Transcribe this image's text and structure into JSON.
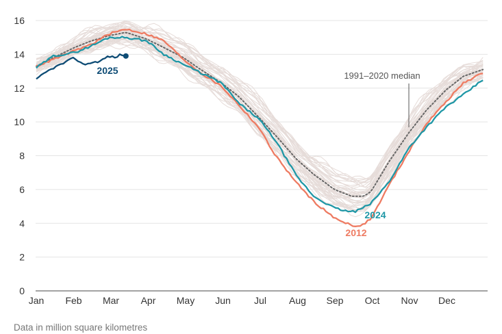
{
  "chart_data": {
    "type": "line",
    "title": "",
    "xlabel": "",
    "ylabel": "",
    "note": "Data in million square kilometres",
    "x_ticks": [
      "Jan",
      "Feb",
      "Mar",
      "Apr",
      "May",
      "Jun",
      "Jul",
      "Aug",
      "Sep",
      "Oct",
      "Nov",
      "Dec"
    ],
    "y_ticks": [
      0,
      2,
      4,
      6,
      8,
      10,
      12,
      14,
      16
    ],
    "ylim": [
      0,
      16
    ],
    "grid": true,
    "series": [
      {
        "name": "1991–2020 median",
        "color": "#666666",
        "style": "dotted",
        "points": [
          [
            1,
            13.3
          ],
          [
            15,
            13.8
          ],
          [
            32,
            14.4
          ],
          [
            46,
            14.8
          ],
          [
            60,
            15.1
          ],
          [
            74,
            15.3
          ],
          [
            91,
            14.9
          ],
          [
            105,
            14.4
          ],
          [
            121,
            13.8
          ],
          [
            135,
            13.1
          ],
          [
            152,
            12.3
          ],
          [
            166,
            11.5
          ],
          [
            182,
            10.3
          ],
          [
            196,
            9.2
          ],
          [
            213,
            7.8
          ],
          [
            227,
            6.9
          ],
          [
            244,
            6.0
          ],
          [
            258,
            5.6
          ],
          [
            268,
            5.6
          ],
          [
            274,
            5.9
          ],
          [
            288,
            7.6
          ],
          [
            305,
            9.4
          ],
          [
            319,
            10.7
          ],
          [
            335,
            11.9
          ],
          [
            349,
            12.7
          ],
          [
            365,
            13.1
          ]
        ]
      },
      {
        "name": "2012",
        "color": "#ee7b62",
        "style": "solid",
        "points": [
          [
            1,
            13.3
          ],
          [
            15,
            13.7
          ],
          [
            32,
            14.2
          ],
          [
            46,
            14.6
          ],
          [
            60,
            15.2
          ],
          [
            74,
            15.5
          ],
          [
            91,
            15.2
          ],
          [
            105,
            14.8
          ],
          [
            121,
            13.7
          ],
          [
            135,
            12.9
          ],
          [
            152,
            12.1
          ],
          [
            166,
            11.0
          ],
          [
            182,
            9.7
          ],
          [
            196,
            8.0
          ],
          [
            213,
            6.4
          ],
          [
            227,
            5.3
          ],
          [
            244,
            4.3
          ],
          [
            258,
            3.9
          ],
          [
            265,
            3.8
          ],
          [
            274,
            4.3
          ],
          [
            288,
            6.2
          ],
          [
            305,
            8.3
          ],
          [
            319,
            9.9
          ],
          [
            335,
            11.2
          ],
          [
            349,
            12.3
          ],
          [
            365,
            12.9
          ]
        ]
      },
      {
        "name": "2024",
        "color": "#1f97a6",
        "style": "solid",
        "points": [
          [
            1,
            13.2
          ],
          [
            15,
            13.9
          ],
          [
            32,
            14.1
          ],
          [
            46,
            14.5
          ],
          [
            60,
            15.0
          ],
          [
            74,
            15.0
          ],
          [
            91,
            14.8
          ],
          [
            105,
            14.0
          ],
          [
            121,
            13.4
          ],
          [
            135,
            12.9
          ],
          [
            152,
            12.3
          ],
          [
            166,
            11.1
          ],
          [
            182,
            10.2
          ],
          [
            196,
            8.9
          ],
          [
            213,
            6.8
          ],
          [
            227,
            5.6
          ],
          [
            244,
            4.9
          ],
          [
            255,
            4.7
          ],
          [
            261,
            4.7
          ],
          [
            267,
            4.9
          ],
          [
            274,
            5.2
          ],
          [
            288,
            6.4
          ],
          [
            305,
            8.5
          ],
          [
            319,
            9.7
          ],
          [
            335,
            10.9
          ],
          [
            349,
            11.6
          ],
          [
            365,
            12.5
          ]
        ]
      },
      {
        "name": "2025",
        "color": "#0e4c75",
        "style": "solid",
        "points": [
          [
            1,
            12.5
          ],
          [
            8,
            12.9
          ],
          [
            15,
            13.2
          ],
          [
            24,
            13.5
          ],
          [
            32,
            13.8
          ],
          [
            39,
            13.4
          ],
          [
            46,
            13.5
          ],
          [
            53,
            13.6
          ],
          [
            60,
            13.9
          ],
          [
            65,
            13.8
          ],
          [
            70,
            14.0
          ],
          [
            74,
            13.9
          ]
        ]
      }
    ],
    "background_years": {
      "name": "",
      "color": "#e6dcd9",
      "count": 45
    }
  }
}
